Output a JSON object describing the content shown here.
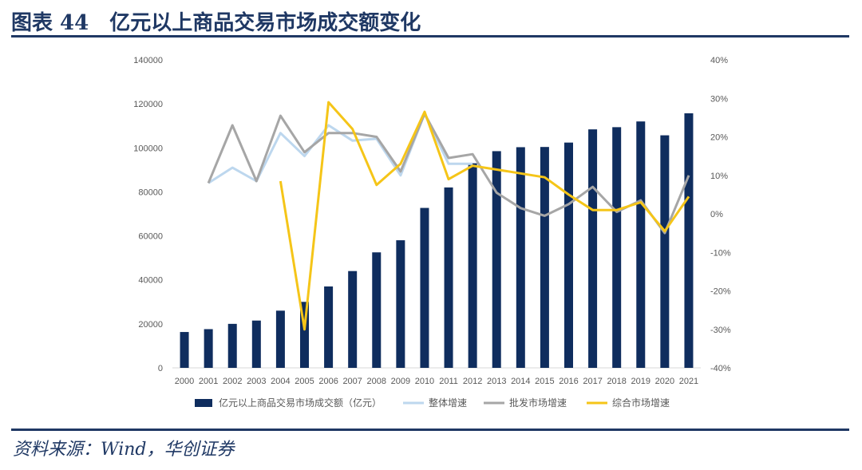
{
  "header": {
    "title": "图表 44　亿元以上商品交易市场成交额变化"
  },
  "footer": {
    "source": "资料来源：Wind，华创证券"
  },
  "colors": {
    "bar": "#0f2d5e",
    "overall": "#bdd7ee",
    "wholesale": "#a6a6a6",
    "comprehensive": "#f5c518",
    "brand": "#1f3864"
  },
  "chart_data": {
    "type": "bar",
    "categories": [
      "2000",
      "2001",
      "2002",
      "2003",
      "2004",
      "2005",
      "2006",
      "2007",
      "2008",
      "2009",
      "2010",
      "2011",
      "2012",
      "2013",
      "2014",
      "2015",
      "2016",
      "2017",
      "2018",
      "2019",
      "2020",
      "2021"
    ],
    "y_left_ticks": [
      "0",
      "20000",
      "40000",
      "60000",
      "80000",
      "100000",
      "120000",
      "140000"
    ],
    "y_right_ticks": [
      "-40%",
      "-30%",
      "-20%",
      "-10%",
      "0%",
      "10%",
      "20%",
      "30%",
      "40%"
    ],
    "ylim_left": [
      0,
      140000
    ],
    "ylim_right": [
      -40,
      40
    ],
    "series": [
      {
        "name": "亿元以上商品交易市场成交额（亿元）",
        "type": "bar",
        "axis": "left",
        "values": [
          16300,
          17600,
          20000,
          21500,
          26000,
          30000,
          37000,
          44000,
          52500,
          58000,
          72700,
          82000,
          93000,
          98500,
          100300,
          100400,
          102400,
          108400,
          109400,
          112000,
          105700,
          115700
        ]
      },
      {
        "name": "整体增速",
        "type": "line",
        "axis": "right",
        "values": [
          null,
          8,
          12,
          8.5,
          21,
          15,
          23,
          19,
          19.5,
          10,
          26,
          13,
          13,
          null,
          null,
          null,
          null,
          null,
          null,
          null,
          null,
          null
        ]
      },
      {
        "name": "批发市场增速",
        "type": "line",
        "axis": "right",
        "values": [
          null,
          8,
          23,
          8.5,
          25.5,
          16,
          21,
          21,
          20,
          11,
          26,
          14.5,
          15.5,
          5.5,
          1.5,
          -0.5,
          2.5,
          7,
          0.5,
          3.5,
          -5,
          10
        ]
      },
      {
        "name": "综合市场增速",
        "type": "line",
        "axis": "right",
        "values": [
          null,
          null,
          null,
          null,
          8.5,
          -30,
          29,
          22,
          7.5,
          13,
          26.5,
          9,
          12.5,
          11.5,
          10.5,
          9.5,
          5,
          1,
          1,
          3,
          -4.5,
          4.5
        ]
      }
    ],
    "legend_placement": "bottom"
  }
}
